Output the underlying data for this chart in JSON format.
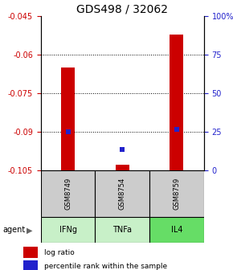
{
  "title": "GDS498 / 32062",
  "samples": [
    "GSM8749",
    "GSM8754",
    "GSM8759"
  ],
  "agents": [
    "IFNg",
    "TNFa",
    "IL4"
  ],
  "agent_label": "agent",
  "ylim_left": [
    -0.105,
    -0.045
  ],
  "ylim_right": [
    0,
    100
  ],
  "yticks_left": [
    -0.105,
    -0.09,
    -0.075,
    -0.06,
    -0.045
  ],
  "yticks_right": [
    0,
    25,
    50,
    75,
    100
  ],
  "bar_bottom": -0.105,
  "log_ratio": [
    -0.065,
    -0.103,
    -0.052
  ],
  "percentile_rank_log": [
    -0.09,
    -0.097,
    -0.089
  ],
  "bar_width": 0.25,
  "red_color": "#cc0000",
  "blue_color": "#2222cc",
  "agent_colors": [
    "#c8f0c8",
    "#c8f0c8",
    "#66dd66"
  ],
  "sample_box_color": "#cccccc",
  "legend_red": "log ratio",
  "legend_blue": "percentile rank within the sample",
  "title_fontsize": 10,
  "tick_fontsize": 7,
  "sample_fontsize": 6,
  "agent_fontsize": 7
}
